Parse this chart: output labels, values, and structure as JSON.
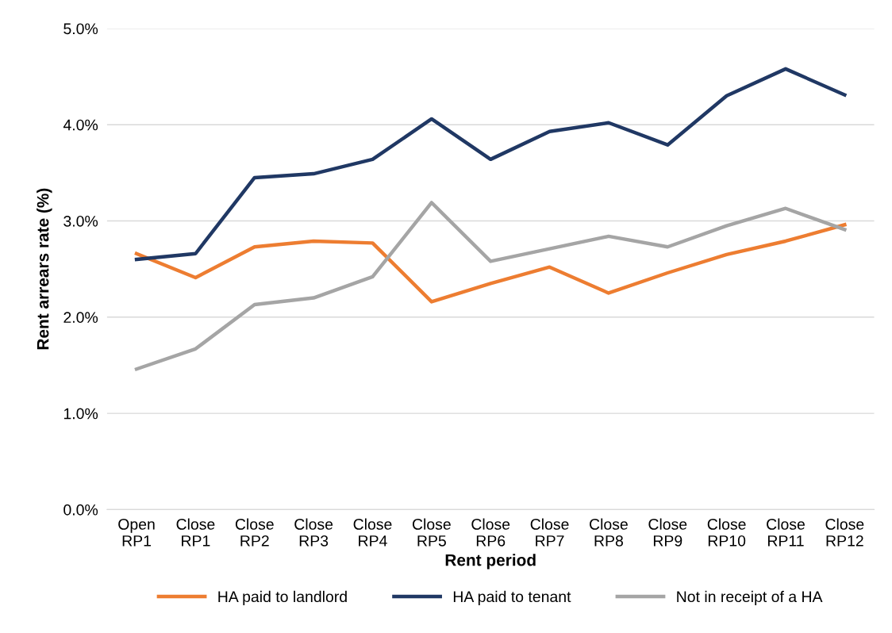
{
  "chart_data": {
    "type": "line",
    "xlabel": "Rent period",
    "ylabel": "Rent arrears rate (%)",
    "categories": [
      "Open\nRP1",
      "Close\nRP1",
      "Close\nRP2",
      "Close\nRP3",
      "Close\nRP4",
      "Close\nRP5",
      "Close\nRP6",
      "Close\nRP7",
      "Close\nRP8",
      "Close\nRP9",
      "Close\nRP10",
      "Close\nRP11",
      "Close\nRP12"
    ],
    "series": [
      {
        "name": "HA paid to landlord",
        "color": "#ed7d31",
        "values": [
          2.66,
          2.41,
          2.73,
          2.79,
          2.77,
          2.16,
          2.35,
          2.52,
          2.25,
          2.46,
          2.65,
          2.79,
          2.96
        ]
      },
      {
        "name": "HA paid to tenant",
        "color": "#203864",
        "values": [
          2.6,
          2.66,
          3.45,
          3.49,
          3.64,
          4.06,
          3.64,
          3.93,
          4.02,
          3.79,
          4.3,
          4.58,
          4.31
        ]
      },
      {
        "name": "Not in receipt of a HA",
        "color": "#a5a5a5",
        "values": [
          1.46,
          1.67,
          2.13,
          2.2,
          2.42,
          3.19,
          2.58,
          2.71,
          2.84,
          2.73,
          2.95,
          3.13,
          2.91
        ]
      }
    ],
    "ylim": [
      0,
      5
    ],
    "yticks": [
      {
        "value": 0,
        "label": "0.0%"
      },
      {
        "value": 1,
        "label": "1.0%"
      },
      {
        "value": 2,
        "label": "2.0%"
      },
      {
        "value": 3,
        "label": "3.0%"
      },
      {
        "value": 4,
        "label": "4.0%"
      },
      {
        "value": 5,
        "label": "5.0%"
      }
    ],
    "grid": "y",
    "legend": "bottom",
    "marker": "none",
    "line_style": "solid"
  }
}
